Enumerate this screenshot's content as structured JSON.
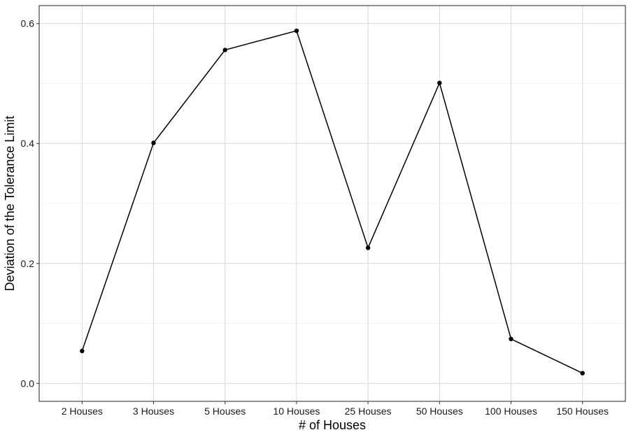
{
  "chart_data": {
    "type": "line",
    "categories": [
      "2 Houses",
      "3 Houses",
      "5 Houses",
      "10 Houses",
      "25 Houses",
      "50 Houses",
      "100 Houses",
      "150 Houses"
    ],
    "values": [
      0.054,
      0.401,
      0.556,
      0.588,
      0.226,
      0.501,
      0.074,
      0.017
    ],
    "xlabel": "# of Houses",
    "ylabel": "Deviation of the Tolerance Limit",
    "ylim": [
      -0.03,
      0.63
    ],
    "yticks": [
      0.0,
      0.2,
      0.4,
      0.6
    ],
    "yticklabels": [
      "0.0",
      "0.2",
      "0.4",
      "0.6"
    ],
    "grid": true,
    "colors": {
      "line": "#000000",
      "point": "#000000",
      "grid": "#d6d6d6"
    }
  }
}
